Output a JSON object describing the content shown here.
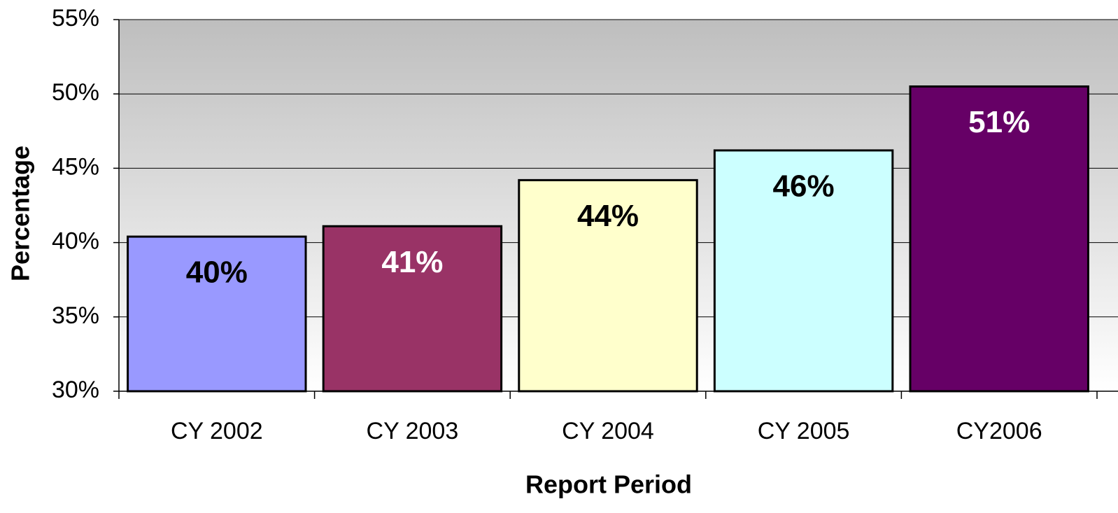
{
  "chart_data": {
    "type": "bar",
    "categories": [
      "CY 2002",
      "CY 2003",
      "CY 2004",
      "CY 2005",
      "CY2006"
    ],
    "values": [
      40.4,
      41.1,
      44.2,
      46.2,
      50.5
    ],
    "value_labels": [
      "40%",
      "41%",
      "44%",
      "46%",
      "51%"
    ],
    "colors": [
      "#9999ff",
      "#993366",
      "#ffffcc",
      "#ccffff",
      "#660066"
    ],
    "ylim": [
      30,
      55
    ],
    "yticks": [
      {
        "value": 30,
        "label": "30%"
      },
      {
        "value": 35,
        "label": "35%"
      },
      {
        "value": 40,
        "label": "40%"
      },
      {
        "value": 45,
        "label": "45%"
      },
      {
        "value": 50,
        "label": "50%"
      },
      {
        "value": 55,
        "label": "55%"
      }
    ],
    "xlabel": "Report Period",
    "ylabel": "Percentage",
    "grid": true
  }
}
